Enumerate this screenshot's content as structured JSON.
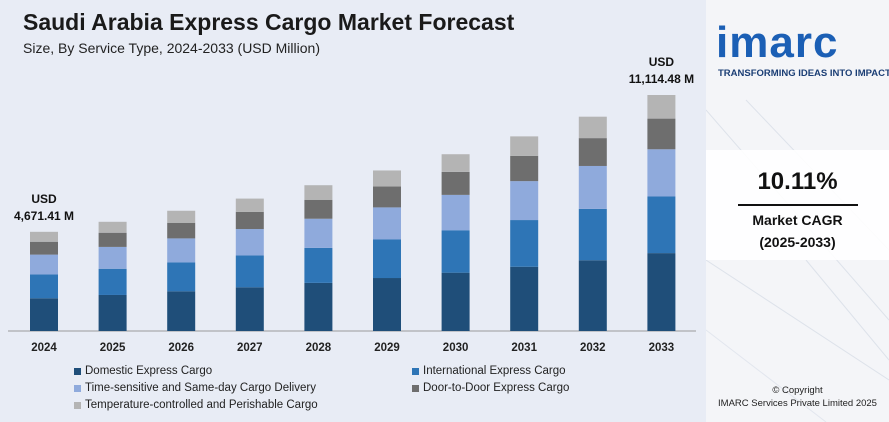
{
  "header": {
    "title": "Saudi Arabia Express Cargo Market Forecast",
    "subtitle": "Size, By Service Type, 2024-2033 (USD Million)"
  },
  "chart_data": {
    "type": "bar",
    "stacked": true,
    "categories": [
      "2024",
      "2025",
      "2026",
      "2027",
      "2028",
      "2029",
      "2030",
      "2031",
      "2032",
      "2033"
    ],
    "totals": [
      4671.41,
      5143,
      5663,
      6236,
      6866,
      7560,
      8325,
      9166,
      10093,
      11114.48
    ],
    "series": [
      {
        "name": "Domestic Express Cargo",
        "color": "#1f4e79",
        "values": [
          1542,
          1697,
          1869,
          2058,
          2266,
          2495,
          2747,
          3025,
          3331,
          3668
        ]
      },
      {
        "name": "International Express Cargo",
        "color": "#2e75b6",
        "values": [
          1121,
          1234,
          1359,
          1497,
          1648,
          1814,
          1998,
          2200,
          2422,
          2667
        ]
      },
      {
        "name": "Time-sensitive and Same-day Cargo Delivery",
        "color": "#8faadc",
        "values": [
          934,
          1029,
          1133,
          1247,
          1373,
          1512,
          1665,
          1833,
          2019,
          2223
        ]
      },
      {
        "name": "Door-to-Door Express Cargo",
        "color": "#6e6e6e",
        "values": [
          607,
          669,
          736,
          811,
          893,
          983,
          1082,
          1192,
          1312,
          1445
        ]
      },
      {
        "name": "Temperature-controlled and Perishable Cargo",
        "color": "#b4b4b4",
        "values": [
          467,
          514,
          566,
          623,
          686,
          756,
          833,
          916,
          1009,
          1111.48
        ]
      }
    ],
    "annotations": [
      {
        "category": "2024",
        "line1": "USD",
        "line2": "4,671.41 M"
      },
      {
        "category": "2033",
        "line1": "USD",
        "line2": "11,114.48 M"
      }
    ],
    "ylim": [
      0,
      12000
    ],
    "grid": false,
    "legend_position": "bottom"
  },
  "sidebar": {
    "logo": "imarc",
    "tagline": "TRANSFORMING IDEAS INTO IMPACT",
    "cagr_value": "10.11%",
    "cagr_label": "Market CAGR",
    "cagr_period": "(2025-2033)",
    "copyright": "© Copyright",
    "company": "IMARC Services Private Limited 2025"
  }
}
